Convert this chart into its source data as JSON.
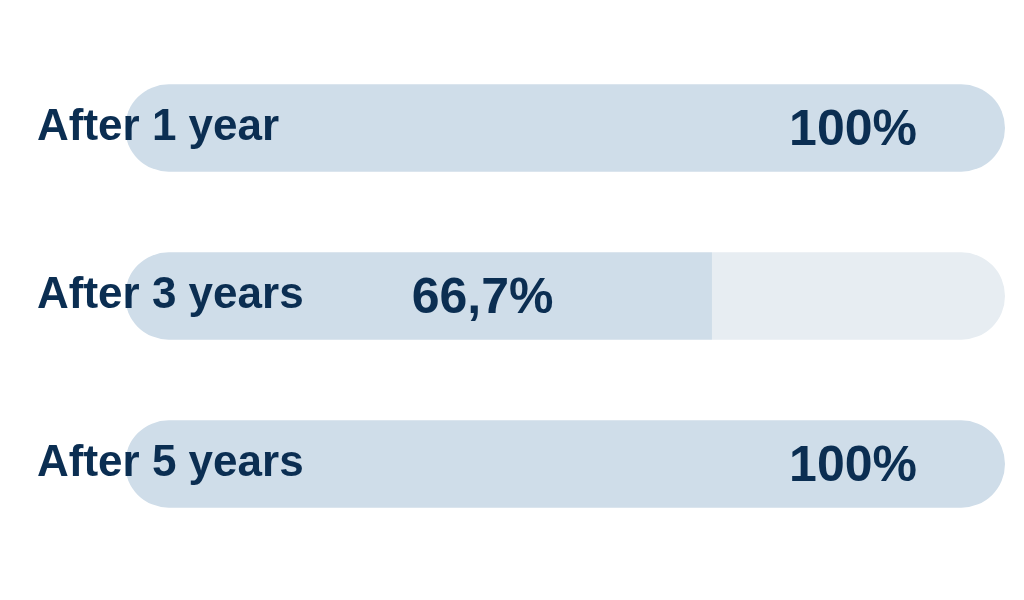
{
  "chart_data": {
    "type": "bar",
    "orientation": "horizontal",
    "stacked": true,
    "categories": [
      "After 1 year",
      "After 3 years",
      "After 5 years"
    ],
    "series": [
      {
        "color": "#cfdde9",
        "values": [
          100,
          66.7,
          100
        ],
        "value_labels": [
          "100%",
          "66,7%",
          "100%"
        ]
      },
      {
        "color": "#e7edf2",
        "values": [
          0,
          33.3,
          0
        ]
      }
    ]
  }
}
